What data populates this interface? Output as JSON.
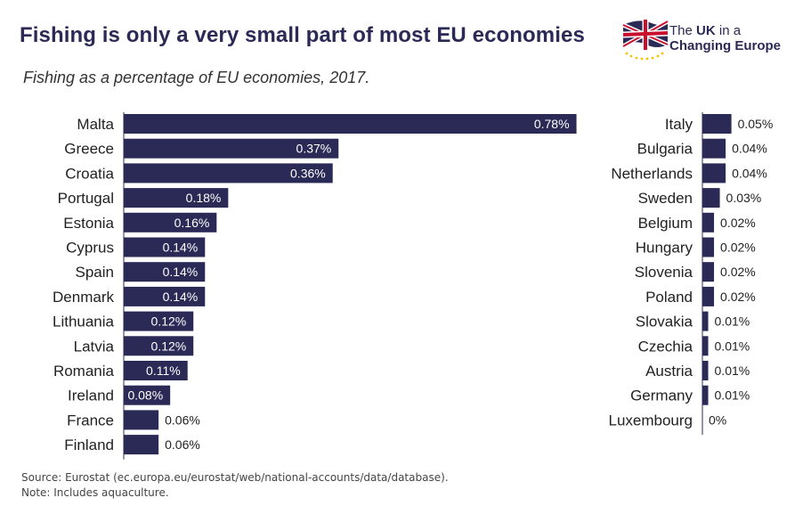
{
  "title": "Fishing is only a very small part of most EU economies",
  "subtitle": "Fishing as a percentage of EU economies, 2017.",
  "logo": {
    "line1_pre": "The ",
    "line1_bold": "UK",
    "line1_post": " in a",
    "line2": "Changing Europe",
    "icon": "union-jack-eu-flag-icon"
  },
  "colors": {
    "bar": "#2b2a56",
    "title": "#2b2a56",
    "axis": "#2b2a56"
  },
  "chart_data": [
    {
      "type": "bar",
      "orientation": "horizontal",
      "title": "Fishing as a percentage of EU economies, 2017.",
      "xlim": [
        0,
        0.78
      ],
      "unit": "%",
      "categories": [
        "Malta",
        "Greece",
        "Croatia",
        "Portugal",
        "Estonia",
        "Cyprus",
        "Spain",
        "Denmark",
        "Lithuania",
        "Latvia",
        "Romania",
        "Ireland",
        "France",
        "Finland"
      ],
      "values": [
        0.78,
        0.37,
        0.36,
        0.18,
        0.16,
        0.14,
        0.14,
        0.14,
        0.12,
        0.12,
        0.11,
        0.08,
        0.06,
        0.06
      ],
      "labels": [
        "0.78%",
        "0.37%",
        "0.36%",
        "0.18%",
        "0.16%",
        "0.14%",
        "0.14%",
        "0.14%",
        "0.12%",
        "0.12%",
        "0.11%",
        "0.08%",
        "0.06%",
        "0.06%"
      ]
    },
    {
      "type": "bar",
      "orientation": "horizontal",
      "xlim": [
        0,
        0.78
      ],
      "unit": "%",
      "categories": [
        "Italy",
        "Bulgaria",
        "Netherlands",
        "Sweden",
        "Belgium",
        "Hungary",
        "Slovenia",
        "Poland",
        "Slovakia",
        "Czechia",
        "Austria",
        "Germany",
        "Luxembourg"
      ],
      "values": [
        0.05,
        0.04,
        0.04,
        0.03,
        0.02,
        0.02,
        0.02,
        0.02,
        0.01,
        0.01,
        0.01,
        0.01,
        0
      ],
      "labels": [
        "0.05%",
        "0.04%",
        "0.04%",
        "0.03%",
        "0.02%",
        "0.02%",
        "0.02%",
        "0.02%",
        "0.01%",
        "0.01%",
        "0.01%",
        "0.01%",
        "0%"
      ]
    }
  ],
  "footer": {
    "source": "Source: Eurostat (ec.europa.eu/eurostat/web/national-accounts/data/database).",
    "note": "Note: Includes aquaculture."
  }
}
